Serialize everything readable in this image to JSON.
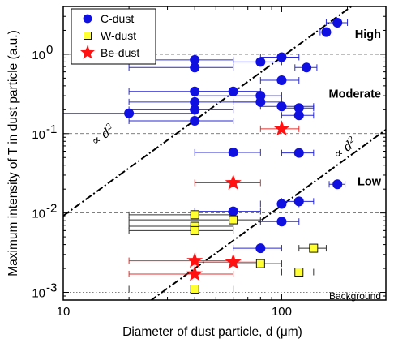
{
  "chart_data": {
    "type": "scatter",
    "title": "",
    "xlabel": "Diameter of dust particle, d (μm)",
    "ylabel": "Maximum intensity of T in dust particle (a.u.)",
    "xscale": "log",
    "yscale": "log",
    "xlim": [
      10,
      300
    ],
    "ylim": [
      0.0008,
      4
    ],
    "x_ticks": [
      {
        "value": 10,
        "label": "10"
      },
      {
        "value": 100,
        "label": "100"
      }
    ],
    "y_ticks": [
      {
        "value": 0.001,
        "base": "10",
        "exp": "-3"
      },
      {
        "value": 0.01,
        "base": "10",
        "exp": "-2"
      },
      {
        "value": 0.1,
        "base": "10",
        "exp": "-1"
      },
      {
        "value": 1,
        "base": "10",
        "exp": "0"
      }
    ],
    "legend": {
      "position": "top-left",
      "entries": [
        {
          "label": "C-dust",
          "marker": "circle",
          "color": "#1010e0"
        },
        {
          "label": "W-dust",
          "marker": "square",
          "color": "#ffff33"
        },
        {
          "label": "Be-dust",
          "marker": "star",
          "color": "#ff1111"
        }
      ]
    },
    "series": [
      {
        "name": "C-dust",
        "marker": "circle",
        "color": "#1010e0",
        "points": [
          {
            "x": 180,
            "y": 2.5,
            "xmin": 160,
            "xmax": 200
          },
          {
            "x": 160,
            "y": 1.9,
            "xmin": 150,
            "xmax": 170
          },
          {
            "x": 40,
            "y": 0.85,
            "xmin": 20,
            "xmax": 60
          },
          {
            "x": 80,
            "y": 0.8,
            "xmin": 60,
            "xmax": 100
          },
          {
            "x": 100,
            "y": 0.92,
            "xmin": 80,
            "xmax": 120
          },
          {
            "x": 40,
            "y": 0.68,
            "xmin": 20,
            "xmax": 60
          },
          {
            "x": 130,
            "y": 0.68,
            "xmin": 115,
            "xmax": 145
          },
          {
            "x": 100,
            "y": 0.47,
            "xmin": 80,
            "xmax": 120
          },
          {
            "x": 40,
            "y": 0.34,
            "xmin": 20,
            "xmax": 80
          },
          {
            "x": 60,
            "y": 0.34,
            "xmin": 40,
            "xmax": 80
          },
          {
            "x": 80,
            "y": 0.3,
            "xmin": 40,
            "xmax": 100
          },
          {
            "x": 40,
            "y": 0.25,
            "xmin": 20,
            "xmax": 80
          },
          {
            "x": 80,
            "y": 0.25,
            "xmin": 60,
            "xmax": 100
          },
          {
            "x": 40,
            "y": 0.2,
            "xmin": 20,
            "xmax": 60
          },
          {
            "x": 100,
            "y": 0.22,
            "xmin": 80,
            "xmax": 140
          },
          {
            "x": 120,
            "y": 0.21,
            "xmin": 100,
            "xmax": 140
          },
          {
            "x": 20,
            "y": 0.18,
            "xmin": 10,
            "xmax": 40
          },
          {
            "x": 120,
            "y": 0.17,
            "xmin": 100,
            "xmax": 140
          },
          {
            "x": 40,
            "y": 0.145,
            "xmin": 20,
            "xmax": 60
          },
          {
            "x": 60,
            "y": 0.058,
            "xmin": 40,
            "xmax": 80
          },
          {
            "x": 120,
            "y": 0.057,
            "xmin": 100,
            "xmax": 140
          },
          {
            "x": 180,
            "y": 0.023,
            "xmin": 165,
            "xmax": 195
          },
          {
            "x": 100,
            "y": 0.013,
            "xmin": 80,
            "xmax": 120
          },
          {
            "x": 120,
            "y": 0.014,
            "xmin": 100,
            "xmax": 140
          },
          {
            "x": 60,
            "y": 0.0105,
            "xmin": 40,
            "xmax": 80
          },
          {
            "x": 100,
            "y": 0.0078,
            "xmin": 80,
            "xmax": 120
          },
          {
            "x": 80,
            "y": 0.0036,
            "xmin": 60,
            "xmax": 100
          }
        ]
      },
      {
        "name": "W-dust",
        "marker": "square",
        "color": "#ffff33",
        "points": [
          {
            "x": 40,
            "y": 0.0095,
            "xmin": 20,
            "xmax": 60
          },
          {
            "x": 60,
            "y": 0.0082,
            "xmin": 20,
            "xmax": 80
          },
          {
            "x": 40,
            "y": 0.0068,
            "xmin": 20,
            "xmax": 60
          },
          {
            "x": 40,
            "y": 0.006,
            "xmin": 20,
            "xmax": 60
          },
          {
            "x": 140,
            "y": 0.0036,
            "xmin": 120,
            "xmax": 160
          },
          {
            "x": 80,
            "y": 0.0023,
            "xmin": 60,
            "xmax": 100
          },
          {
            "x": 120,
            "y": 0.0018,
            "xmin": 100,
            "xmax": 140
          },
          {
            "x": 40,
            "y": 0.0011,
            "xmin": 20,
            "xmax": 60
          }
        ]
      },
      {
        "name": "Be-dust",
        "marker": "star",
        "color": "#ff1111",
        "points": [
          {
            "x": 100,
            "y": 0.115,
            "xmin": 80,
            "xmax": 120
          },
          {
            "x": 60,
            "y": 0.024,
            "xmin": 40,
            "xmax": 80
          },
          {
            "x": 40,
            "y": 0.0025,
            "xmin": 20,
            "xmax": 60
          },
          {
            "x": 60,
            "y": 0.0024,
            "xmin": 40,
            "xmax": 80
          },
          {
            "x": 40,
            "y": 0.0017,
            "xmin": 20,
            "xmax": 60
          }
        ]
      }
    ],
    "region_boundaries": [
      1,
      0.1,
      0.01,
      0.001
    ],
    "region_labels": [
      {
        "text": "High",
        "y": 1.8
      },
      {
        "text": "Moderate",
        "y": 0.32
      },
      {
        "text": "Low",
        "y": 0.025
      },
      {
        "text": "Background",
        "y": 0.00092
      }
    ],
    "trend_lines": [
      {
        "label_base": "∝ d",
        "label_exp": "2",
        "points": [
          [
            10,
            0.0092
          ],
          [
            250,
            5.75
          ]
        ],
        "label_at": [
          14,
          0.07
        ]
      },
      {
        "label_base": "∝ d",
        "label_exp": "2",
        "points": [
          [
            25,
            0.00078
          ],
          [
            300,
            0.112
          ]
        ],
        "label_at": [
          180,
          0.048
        ]
      }
    ]
  }
}
